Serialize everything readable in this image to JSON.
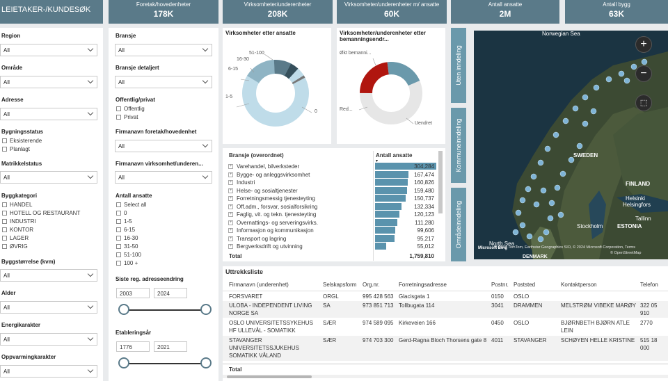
{
  "title": "LEIETAKER-/KUNDESØK",
  "kpis": [
    {
      "label": "Foretak/hovedenheter",
      "value": "178K"
    },
    {
      "label": "Virksomheter/underenheter",
      "value": "208K"
    },
    {
      "label": "Virksomheter/underenheter m/ ansatte",
      "value": "60K"
    },
    {
      "label": "Antall ansatte",
      "value": "2M"
    },
    {
      "label": "Antall bygg",
      "value": "63K"
    }
  ],
  "filters_left": {
    "region": {
      "label": "Region",
      "value": "All"
    },
    "omrade": {
      "label": "Område",
      "value": "All"
    },
    "adresse": {
      "label": "Adresse",
      "value": "All"
    },
    "bygningsstatus": {
      "label": "Bygningsstatus",
      "options": [
        "Eksisterende",
        "Planlagt"
      ]
    },
    "matrikkelstatus": {
      "label": "Matrikkelstatus",
      "value": "All"
    },
    "byggkategori": {
      "label": "Byggkategori",
      "options": [
        "HANDEL",
        "HOTELL OG RESTAURANT",
        "INDUSTRI",
        "KONTOR",
        "LAGER",
        "ØVRIG"
      ]
    },
    "byggstorrelse": {
      "label": "Byggstørrelse (kvm)",
      "value": "All"
    },
    "alder": {
      "label": "Alder",
      "value": "All"
    },
    "energikarakter": {
      "label": "Energikarakter",
      "value": "All"
    },
    "oppvarmingskarakter": {
      "label": "Oppvarmingkarakter",
      "value": "All"
    }
  },
  "filters_mid": {
    "bransje": {
      "label": "Bransje",
      "value": "All"
    },
    "bransje_detaljert": {
      "label": "Bransje detaljert",
      "value": "All"
    },
    "offentlig": {
      "label": "Offentlig/privat",
      "options": [
        "Offentlig",
        "Privat"
      ]
    },
    "firmanavn_foretak": {
      "label": "Firmanavn foretak/hovedenhet",
      "value": "All"
    },
    "firmanavn_virksomhet": {
      "label": "Firmanavn virksomhet/underen...",
      "value": "All"
    },
    "antall_ansatte": {
      "label": "Antall ansatte",
      "options": [
        "Select all",
        "0",
        "1-5",
        "6-15",
        "16-30",
        "31-50",
        "51-100",
        "100 +"
      ]
    },
    "siste_reg": {
      "label": "Siste reg. adresseendring",
      "from": "2003",
      "to": "2024"
    },
    "etableringsar": {
      "label": "Etableringsår",
      "from": "1776",
      "to": "2021"
    }
  },
  "donut1": {
    "title": "Virksomheter etter ansatte",
    "labels": [
      "51-100",
      "16-30",
      "6-15",
      "1-5",
      "0"
    ],
    "colors": [
      "#354f5b",
      "#5a7a89",
      "#8fb4c4",
      "#bfdce9",
      "#777777"
    ]
  },
  "donut2": {
    "title": "Virksomheter/underenheter etter bemanningsendr...",
    "labels": [
      "Økt bemanni...",
      "Red...",
      "Uendret"
    ],
    "colors": [
      "#6a99ab",
      "#b0160f",
      "#e6e6e6"
    ]
  },
  "vtabs": [
    "Uten inndeling",
    "Kommuneinndeling",
    "Områdeinndeling"
  ],
  "map": {
    "labels": {
      "norwegian_sea": "Norwegian Sea",
      "sweden": "SWEDEN",
      "finland": "FINLAND",
      "helsinki": "Helsinki",
      "helsingfors": "Helsingfors",
      "stockholm": "Stockholm",
      "estonia": "ESTONIA",
      "tallinn": "Tallinn",
      "north_sea": "North Sea",
      "denmark": "DENMARK"
    },
    "attribution": "© 2024 TomTom, Earthstar Geographics SIO, © 2024 Microsoft Corporation, Terms",
    "osm": "© OpenStreetMap",
    "logo": "Microsoft Bing"
  },
  "bransje_table": {
    "col1": "Bransje (overordnet)",
    "col2": "Antall ansatte",
    "rows": [
      {
        "name": "Varehandel, bilverksteder",
        "value": "304,284"
      },
      {
        "name": "Bygge- og anleggsvirksomhet",
        "value": "167,474"
      },
      {
        "name": "Industri",
        "value": "160,826"
      },
      {
        "name": "Helse- og sosialtjenester",
        "value": "159,480"
      },
      {
        "name": "Forretningsmessig tjenesteyting",
        "value": "150,737"
      },
      {
        "name": "Off.adm., forsvar, sosialforsikring",
        "value": "132,334"
      },
      {
        "name": "Faglig, vit. og tekn. tjenesteyting",
        "value": "120,123"
      },
      {
        "name": "Overnattings- og serveringsvirks.",
        "value": "111,280"
      },
      {
        "name": "Informasjon og kommunikasjon",
        "value": "99,606"
      },
      {
        "name": "Transport og lagring",
        "value": "95,217"
      },
      {
        "name": "Bergverksdrift og utvinning",
        "value": "55,012"
      }
    ],
    "values": [
      304284,
      167474,
      160826,
      159480,
      150737,
      132334,
      120123,
      111280,
      99606,
      95217,
      55012
    ],
    "total": "1,759,810"
  },
  "uttrekk": {
    "title": "Uttrekksliste",
    "headers": [
      "Firmanavn (underenhet)",
      "Selskapsform",
      "Org.nr.",
      "Forretningsadresse",
      "Postnr.",
      "Poststed",
      "Kontaktperson",
      "Telefon"
    ],
    "rows": [
      [
        "FORSVARET",
        "ORGL",
        "995 428 563",
        "Glacisgata 1",
        "0150",
        "OSLO",
        "",
        ""
      ],
      [
        "ULOBA - INDEPENDENT LIVING NORGE SA",
        "SA",
        "973 851 713",
        "Tollbugata 114",
        "3041",
        "DRAMMEN",
        "MELSTRØM VIBEKE MARØY",
        "322 05 910"
      ],
      [
        "OSLO UNIVERSITETSSYKEHUS HF ULLEVÅL - SOMATIKK",
        "SÆR",
        "974 589 095",
        "Kirkeveien 166",
        "0450",
        "OSLO",
        "BJØRNBETH BJØRN ATLE LEIN",
        "2770"
      ],
      [
        "STAVANGER UNIVERSITETSSJUKEHUS SOMATIKK VÅLAND",
        "SÆR",
        "974 703 300",
        "Gerd-Ragna Bloch Thorsens gate 8",
        "4011",
        "STAVANGER",
        "SCHØYEN HELLE KRISTINE",
        "515 18 000"
      ]
    ],
    "total_label": "Total"
  }
}
